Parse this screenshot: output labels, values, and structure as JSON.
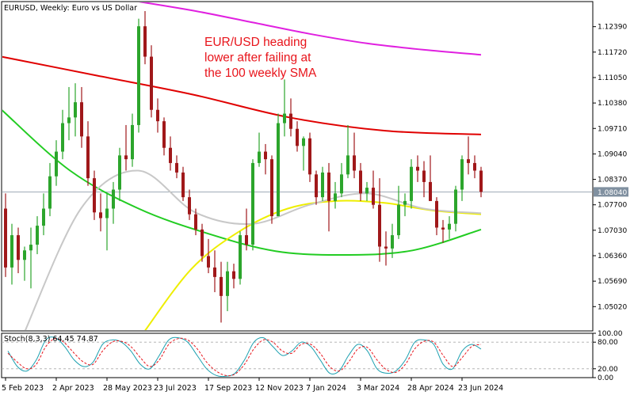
{
  "chart_data": [
    {
      "type": "candlestick",
      "title": "EURUSD, Weekly:  Euro vs US Dollar",
      "annotation": [
        "EUR/USD heading",
        "lower after failing at",
        "the 100 weekly SMA"
      ],
      "ylim": [
        1.0438,
        1.1305
      ],
      "y_ticks": [
        "1.12390",
        "1.11720",
        "1.11050",
        "1.10380",
        "1.09710",
        "1.09040",
        "1.08370",
        "1.07700",
        "1.07030",
        "1.06360",
        "1.05690",
        "1.05020"
      ],
      "y_tick_values": [
        1.1239,
        1.1172,
        1.1105,
        1.1038,
        1.0971,
        1.0904,
        1.0837,
        1.077,
        1.0703,
        1.0636,
        1.0569,
        1.0502
      ],
      "current_price": "1.08040",
      "current_price_value": 1.0804,
      "x_ticks": [
        "5 Feb 2023",
        "2 Apr 2023",
        "28 May 2023",
        "23 Jul 2023",
        "17 Sep 2023",
        "12 Nov 2023",
        "7 Jan 2024",
        "3 Mar 2024",
        "28 Apr 2024",
        "23 Jun 2024"
      ],
      "x_tick_bar_index": [
        0,
        8,
        16,
        24,
        32,
        40,
        48,
        56,
        64,
        72
      ],
      "colors": {
        "up": "#2ca52c",
        "down": "#a0181a",
        "sma_red": "#e00000",
        "sma_magenta": "#e020e0",
        "sma_green": "#22cc22",
        "sma_yellow": "#eeee00",
        "sma_gray": "#c8c8c8",
        "price_line": "#8090a0"
      },
      "grid": false,
      "candles": [
        {
          "o": 1.076,
          "h": 1.08,
          "l": 1.058,
          "c": 1.0605
        },
        {
          "o": 1.0605,
          "h": 1.072,
          "l": 1.056,
          "c": 1.069
        },
        {
          "o": 1.069,
          "h": 1.071,
          "l": 1.059,
          "c": 1.0625
        },
        {
          "o": 1.0625,
          "h": 1.066,
          "l": 1.057,
          "c": 1.065
        },
        {
          "o": 1.065,
          "h": 1.071,
          "l": 1.055,
          "c": 1.0665
        },
        {
          "o": 1.0665,
          "h": 1.074,
          "l": 1.064,
          "c": 1.0715
        },
        {
          "o": 1.0715,
          "h": 1.08,
          "l": 1.069,
          "c": 1.076
        },
        {
          "o": 1.076,
          "h": 1.088,
          "l": 1.074,
          "c": 1.0845
        },
        {
          "o": 1.0845,
          "h": 1.094,
          "l": 1.082,
          "c": 1.091
        },
        {
          "o": 1.091,
          "h": 1.102,
          "l": 1.089,
          "c": 1.0985
        },
        {
          "o": 1.0985,
          "h": 1.108,
          "l": 1.094,
          "c": 1.1
        },
        {
          "o": 1.1,
          "h": 1.109,
          "l": 1.095,
          "c": 1.104
        },
        {
          "o": 1.104,
          "h": 1.108,
          "l": 1.092,
          "c": 1.095
        },
        {
          "o": 1.095,
          "h": 1.099,
          "l": 1.082,
          "c": 1.084
        },
        {
          "o": 1.084,
          "h": 1.086,
          "l": 1.073,
          "c": 1.075
        },
        {
          "o": 1.075,
          "h": 1.08,
          "l": 1.07,
          "c": 1.0735
        },
        {
          "o": 1.0735,
          "h": 1.08,
          "l": 1.065,
          "c": 1.076
        },
        {
          "o": 1.076,
          "h": 1.083,
          "l": 1.072,
          "c": 1.081
        },
        {
          "o": 1.081,
          "h": 1.092,
          "l": 1.078,
          "c": 1.09
        },
        {
          "o": 1.09,
          "h": 1.098,
          "l": 1.086,
          "c": 1.089
        },
        {
          "o": 1.089,
          "h": 1.101,
          "l": 1.087,
          "c": 1.098
        },
        {
          "o": 1.098,
          "h": 1.126,
          "l": 1.096,
          "c": 1.124
        },
        {
          "o": 1.124,
          "h": 1.128,
          "l": 1.114,
          "c": 1.116
        },
        {
          "o": 1.116,
          "h": 1.119,
          "l": 1.1,
          "c": 1.102
        },
        {
          "o": 1.102,
          "h": 1.105,
          "l": 1.096,
          "c": 1.099
        },
        {
          "o": 1.099,
          "h": 1.1,
          "l": 1.09,
          "c": 1.092
        },
        {
          "o": 1.092,
          "h": 1.095,
          "l": 1.086,
          "c": 1.088
        },
        {
          "o": 1.088,
          "h": 1.09,
          "l": 1.084,
          "c": 1.0855
        },
        {
          "o": 1.0855,
          "h": 1.087,
          "l": 1.078,
          "c": 1.079
        },
        {
          "o": 1.079,
          "h": 1.081,
          "l": 1.073,
          "c": 1.0745
        },
        {
          "o": 1.0745,
          "h": 1.076,
          "l": 1.069,
          "c": 1.0705
        },
        {
          "o": 1.0705,
          "h": 1.072,
          "l": 1.062,
          "c": 1.0635
        },
        {
          "o": 1.0635,
          "h": 1.068,
          "l": 1.059,
          "c": 1.0605
        },
        {
          "o": 1.0605,
          "h": 1.065,
          "l": 1.054,
          "c": 1.058
        },
        {
          "o": 1.058,
          "h": 1.062,
          "l": 1.046,
          "c": 1.053
        },
        {
          "o": 1.053,
          "h": 1.062,
          "l": 1.049,
          "c": 1.0595
        },
        {
          "o": 1.0595,
          "h": 1.0615,
          "l": 1.055,
          "c": 1.0575
        },
        {
          "o": 1.0575,
          "h": 1.07,
          "l": 1.056,
          "c": 1.069
        },
        {
          "o": 1.069,
          "h": 1.076,
          "l": 1.065,
          "c": 1.0665
        },
        {
          "o": 1.0665,
          "h": 1.089,
          "l": 1.065,
          "c": 1.088
        },
        {
          "o": 1.088,
          "h": 1.096,
          "l": 1.087,
          "c": 1.091
        },
        {
          "o": 1.091,
          "h": 1.093,
          "l": 1.085,
          "c": 1.089
        },
        {
          "o": 1.089,
          "h": 1.09,
          "l": 1.072,
          "c": 1.074
        },
        {
          "o": 1.074,
          "h": 1.101,
          "l": 1.074,
          "c": 1.0985
        },
        {
          "o": 1.0985,
          "h": 1.11,
          "l": 1.095,
          "c": 1.101
        },
        {
          "o": 1.101,
          "h": 1.105,
          "l": 1.095,
          "c": 1.097
        },
        {
          "o": 1.097,
          "h": 1.099,
          "l": 1.091,
          "c": 1.0925
        },
        {
          "o": 1.0925,
          "h": 1.095,
          "l": 1.086,
          "c": 1.0945
        },
        {
          "o": 1.0945,
          "h": 1.096,
          "l": 1.083,
          "c": 1.085
        },
        {
          "o": 1.085,
          "h": 1.086,
          "l": 1.077,
          "c": 1.079
        },
        {
          "o": 1.079,
          "h": 1.087,
          "l": 1.078,
          "c": 1.0855
        },
        {
          "o": 1.0855,
          "h": 1.088,
          "l": 1.07,
          "c": 1.078
        },
        {
          "o": 1.078,
          "h": 1.083,
          "l": 1.076,
          "c": 1.08
        },
        {
          "o": 1.08,
          "h": 1.088,
          "l": 1.079,
          "c": 1.085
        },
        {
          "o": 1.085,
          "h": 1.098,
          "l": 1.084,
          "c": 1.09
        },
        {
          "o": 1.09,
          "h": 1.096,
          "l": 1.084,
          "c": 1.086
        },
        {
          "o": 1.086,
          "h": 1.088,
          "l": 1.078,
          "c": 1.08
        },
        {
          "o": 1.08,
          "h": 1.083,
          "l": 1.078,
          "c": 1.0815
        },
        {
          "o": 1.0815,
          "h": 1.086,
          "l": 1.076,
          "c": 1.077
        },
        {
          "o": 1.077,
          "h": 1.084,
          "l": 1.062,
          "c": 1.066
        },
        {
          "o": 1.066,
          "h": 1.07,
          "l": 1.061,
          "c": 1.0655
        },
        {
          "o": 1.0655,
          "h": 1.072,
          "l": 1.063,
          "c": 1.069
        },
        {
          "o": 1.069,
          "h": 1.082,
          "l": 1.068,
          "c": 1.077
        },
        {
          "o": 1.077,
          "h": 1.08,
          "l": 1.074,
          "c": 1.078
        },
        {
          "o": 1.078,
          "h": 1.089,
          "l": 1.076,
          "c": 1.087
        },
        {
          "o": 1.087,
          "h": 1.09,
          "l": 1.083,
          "c": 1.086
        },
        {
          "o": 1.086,
          "h": 1.0885,
          "l": 1.079,
          "c": 1.083
        },
        {
          "o": 1.083,
          "h": 1.09,
          "l": 1.078,
          "c": 1.078
        },
        {
          "o": 1.078,
          "h": 1.079,
          "l": 1.069,
          "c": 1.071
        },
        {
          "o": 1.071,
          "h": 1.073,
          "l": 1.067,
          "c": 1.0705
        },
        {
          "o": 1.0705,
          "h": 1.074,
          "l": 1.068,
          "c": 1.072
        },
        {
          "o": 1.072,
          "h": 1.082,
          "l": 1.07,
          "c": 1.081
        },
        {
          "o": 1.081,
          "h": 1.09,
          "l": 1.078,
          "c": 1.089
        },
        {
          "o": 1.089,
          "h": 1.095,
          "l": 1.085,
          "c": 1.088
        },
        {
          "o": 1.088,
          "h": 1.09,
          "l": 1.084,
          "c": 1.086
        },
        {
          "o": 1.086,
          "h": 1.087,
          "l": 1.079,
          "c": 1.0804
        }
      ],
      "sma_lines": [
        {
          "color": "#e00000",
          "values": [
            1.116,
            1.111,
            1.106,
            1.1,
            1.0965,
            1.0955
          ]
        },
        {
          "color": "#e020e0",
          "values": [
            1.1305,
            1.128,
            1.125,
            1.122,
            1.1195,
            1.1178,
            1.1165
          ]
        },
        {
          "color": "#22cc22",
          "values": [
            1.102,
            1.086,
            1.076,
            1.0695,
            1.0648,
            1.0638,
            1.065,
            1.0705
          ]
        },
        {
          "color": "#eeee00",
          "values": [
            1.043,
            1.06,
            1.07,
            1.076,
            1.078,
            1.0775,
            1.0755,
            1.0745
          ]
        },
        {
          "color": "#c8c8c8",
          "values": [
            1.043,
            1.076,
            1.086,
            1.075,
            1.072,
            1.077,
            1.08,
            1.076,
            1.0748
          ]
        }
      ]
    },
    {
      "type": "line",
      "title": "Stoch(8,3,3) 64.45 74.87",
      "ylim": [
        0,
        100
      ],
      "y_ticks": [
        "100.00",
        "80.00",
        "20.00",
        "0.00"
      ],
      "y_tick_values": [
        100,
        80,
        20,
        0
      ],
      "levels": [
        80,
        20
      ],
      "series": [
        {
          "color": "#1ca0b0",
          "values": [
            60,
            25,
            15,
            40,
            85,
            90,
            70,
            40,
            25,
            35,
            75,
            85,
            80,
            60,
            30,
            20,
            50,
            85,
            90,
            80,
            50,
            20,
            5,
            3,
            10,
            40,
            80,
            90,
            70,
            50,
            60,
            80,
            70,
            40,
            10,
            15,
            50,
            75,
            60,
            20,
            10,
            15,
            40,
            80,
            85,
            75,
            30,
            20,
            60,
            75,
            64.45
          ]
        },
        {
          "color": "#e8141b",
          "values": [
            55,
            35,
            20,
            30,
            70,
            88,
            78,
            55,
            35,
            30,
            60,
            80,
            82,
            70,
            45,
            25,
            40,
            75,
            88,
            85,
            65,
            35,
            15,
            5,
            8,
            30,
            65,
            85,
            80,
            60,
            55,
            75,
            75,
            55,
            25,
            15,
            35,
            65,
            68,
            40,
            18,
            12,
            30,
            65,
            82,
            80,
            50,
            25,
            45,
            70,
            74.87
          ]
        }
      ]
    }
  ]
}
